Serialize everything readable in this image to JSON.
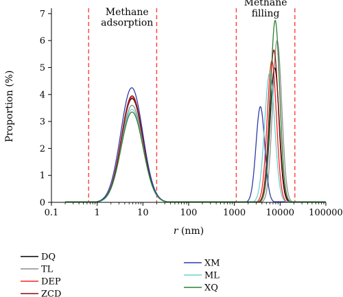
{
  "chart_data": {
    "type": "line",
    "xlabel": "r (nm)",
    "xlabel_var": "r",
    "xlabel_unit": " (nm)",
    "ylabel": "Proportion (%)",
    "xscale": "log",
    "xlim": [
      0.1,
      100000
    ],
    "ylim": [
      0,
      7.2
    ],
    "xticks": [
      0.1,
      1,
      10,
      100,
      1000,
      10000,
      100000
    ],
    "xtick_labels": [
      "0.1",
      "1",
      "10",
      "100",
      "1000",
      "10000",
      "100000"
    ],
    "yticks": [
      0,
      1,
      2,
      3,
      4,
      5,
      6,
      7
    ],
    "ytick_labels": [
      "0",
      "1",
      "2",
      "3",
      "4",
      "5",
      "6",
      "7"
    ],
    "vlines": [
      0.65,
      20,
      1100,
      21000
    ],
    "vline_color": "#ff3b3b",
    "annotations": [
      {
        "lines": [
          "Methane",
          "adsorption"
        ],
        "x": 4.5,
        "y": [
          6.95,
          6.55
        ]
      },
      {
        "lines": [
          "Methane",
          "filling"
        ],
        "x": 4800,
        "y": [
          7.3,
          6.9
        ]
      }
    ],
    "legend": {
      "placement": "bottom",
      "columns": 2
    },
    "series": [
      {
        "name": "DQ",
        "color": "#000000",
        "peaks": [
          {
            "x": 5.8,
            "y": 3.85,
            "w": 0.235
          },
          {
            "x": 7600,
            "y": 5.0,
            "w": 0.1
          }
        ]
      },
      {
        "name": "TL",
        "color": "#8c8c8c",
        "peaks": [
          {
            "x": 5.8,
            "y": 3.6,
            "w": 0.235
          },
          {
            "x": 8600,
            "y": 6.0,
            "w": 0.1
          }
        ]
      },
      {
        "name": "DEP",
        "color": "#ff2020",
        "peaks": [
          {
            "x": 5.8,
            "y": 3.9,
            "w": 0.235
          },
          {
            "x": 6600,
            "y": 5.25,
            "w": 0.1
          }
        ]
      },
      {
        "name": "ZCD",
        "color": "#8b0a0a",
        "peaks": [
          {
            "x": 5.8,
            "y": 3.95,
            "w": 0.235
          },
          {
            "x": 7300,
            "y": 5.65,
            "w": 0.1
          }
        ]
      },
      {
        "name": "XM",
        "color": "#2b3aa8",
        "peaks": [
          {
            "x": 5.7,
            "y": 4.25,
            "w": 0.24
          },
          {
            "x": 3700,
            "y": 3.55,
            "w": 0.095
          }
        ]
      },
      {
        "name": "ML",
        "color": "#66d3d0",
        "peaks": [
          {
            "x": 5.8,
            "y": 3.45,
            "w": 0.235
          },
          {
            "x": 5900,
            "y": 4.8,
            "w": 0.11
          }
        ]
      },
      {
        "name": "XQ",
        "color": "#2e7d32",
        "peaks": [
          {
            "x": 5.8,
            "y": 3.35,
            "w": 0.24
          },
          {
            "x": 7800,
            "y": 6.75,
            "w": 0.1
          }
        ]
      }
    ]
  }
}
